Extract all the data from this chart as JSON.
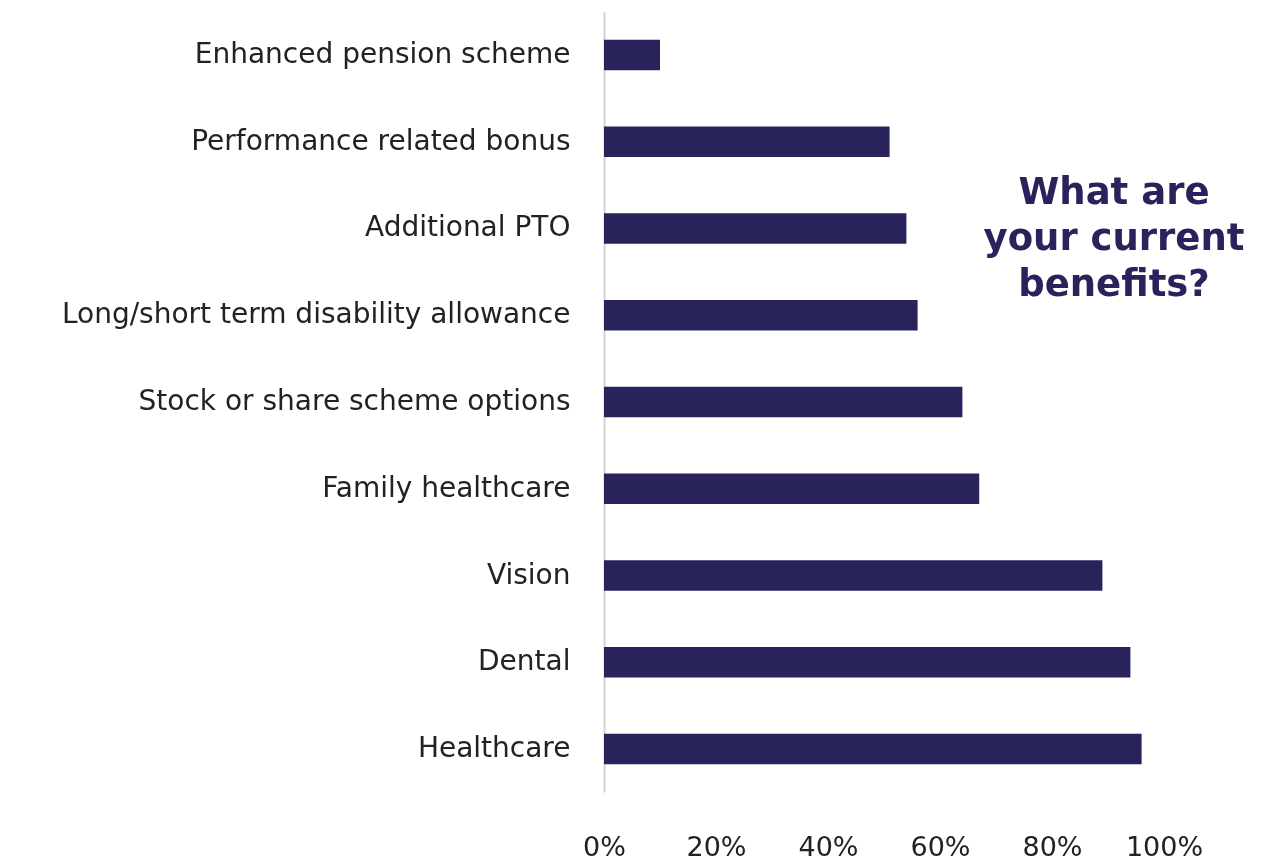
{
  "chart_data": {
    "type": "bar",
    "orientation": "horizontal",
    "title": "What are your current benefits?",
    "categories": [
      "Enhanced pension scheme",
      "Performance related bonus",
      "Additional PTO",
      "Long/short term disability allowance",
      "Stock or share scheme options",
      "Family healthcare",
      "Vision",
      "Dental",
      "Healthcare"
    ],
    "values": [
      10,
      51,
      54,
      56,
      64,
      67,
      89,
      94,
      96
    ],
    "color": "#29235c",
    "xlim": [
      0,
      100
    ],
    "xticks": [
      {
        "value": 0,
        "label": "0%"
      },
      {
        "value": 20,
        "label": "20%"
      },
      {
        "value": 40,
        "label": "40%"
      },
      {
        "value": 60,
        "label": "60%"
      },
      {
        "value": 80,
        "label": "80%"
      },
      {
        "value": 100,
        "label": "100%"
      }
    ],
    "grid": false
  }
}
